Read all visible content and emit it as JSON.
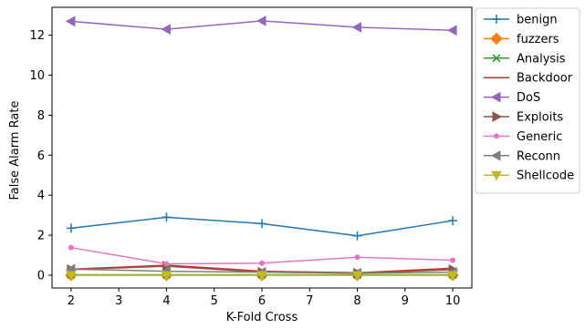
{
  "chart_data": {
    "type": "line",
    "title": "",
    "xlabel": "K-Fold Cross",
    "ylabel": "False Alarm Rate",
    "x": [
      2,
      4,
      6,
      8,
      10
    ],
    "xlim": [
      1.6,
      10.4
    ],
    "ylim": [
      -0.64,
      13.4
    ],
    "xticks": [
      2,
      3,
      4,
      5,
      6,
      7,
      8,
      9,
      10
    ],
    "yticks": [
      0,
      2,
      4,
      6,
      8,
      10,
      12
    ],
    "grid": false,
    "legend_position": "outside-right-top",
    "series": [
      {
        "name": "benign",
        "color": "#1f77b4",
        "marker": "plus",
        "values": [
          2.35,
          2.9,
          2.58,
          1.97,
          2.73
        ]
      },
      {
        "name": "fuzzers",
        "color": "#ff7f0e",
        "marker": "diamond",
        "values": [
          0.0,
          0.0,
          0.0,
          0.0,
          0.0
        ]
      },
      {
        "name": "Analysis",
        "color": "#2ca02c",
        "marker": "x",
        "values": [
          0.02,
          0.02,
          0.02,
          0.02,
          0.02
        ]
      },
      {
        "name": "Backdoor",
        "color": "#d62728",
        "marker": "none",
        "values": [
          0.3,
          0.5,
          0.2,
          0.12,
          0.35
        ]
      },
      {
        "name": "DoS",
        "color": "#9467bd",
        "marker": "triangle-left",
        "values": [
          12.7,
          12.3,
          12.72,
          12.4,
          12.25
        ]
      },
      {
        "name": "Exploits",
        "color": "#8c564b",
        "marker": "triangle-right",
        "values": [
          0.28,
          0.45,
          0.15,
          0.1,
          0.28
        ]
      },
      {
        "name": "Generic",
        "color": "#e377c2",
        "marker": "dot",
        "values": [
          1.38,
          0.57,
          0.6,
          0.9,
          0.75
        ]
      },
      {
        "name": "Reconn",
        "color": "#7f7f7f",
        "marker": "triangle-left",
        "values": [
          0.3,
          0.2,
          0.15,
          0.1,
          0.15
        ]
      },
      {
        "name": "Shellcode",
        "color": "#bcbd22",
        "marker": "triangle-down",
        "values": [
          0.0,
          0.0,
          0.0,
          0.0,
          0.0
        ]
      }
    ]
  }
}
